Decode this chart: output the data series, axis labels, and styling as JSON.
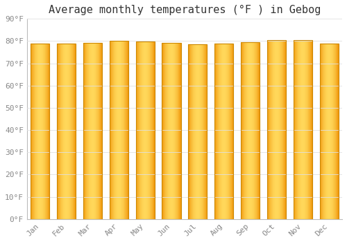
{
  "title": "Average monthly temperatures (°F ) in Gebog",
  "months": [
    "Jan",
    "Feb",
    "Mar",
    "Apr",
    "May",
    "Jun",
    "Jul",
    "Aug",
    "Sep",
    "Oct",
    "Nov",
    "Dec"
  ],
  "values": [
    78.8,
    78.8,
    79.3,
    80.2,
    79.9,
    79.2,
    78.6,
    78.8,
    79.5,
    80.4,
    80.6,
    79.0
  ],
  "ylim": [
    0,
    90
  ],
  "yticks": [
    0,
    10,
    20,
    30,
    40,
    50,
    60,
    70,
    80,
    90
  ],
  "ytick_labels": [
    "0°F",
    "10°F",
    "20°F",
    "30°F",
    "40°F",
    "50°F",
    "60°F",
    "70°F",
    "80°F",
    "90°F"
  ],
  "bar_color_center": "#FFD060",
  "bar_color_edge": "#F0960A",
  "bar_border_color": "#CC8800",
  "background_color": "#FFFFFF",
  "grid_color": "#E0E0E0",
  "title_fontsize": 11,
  "tick_fontsize": 8,
  "font_family": "monospace"
}
